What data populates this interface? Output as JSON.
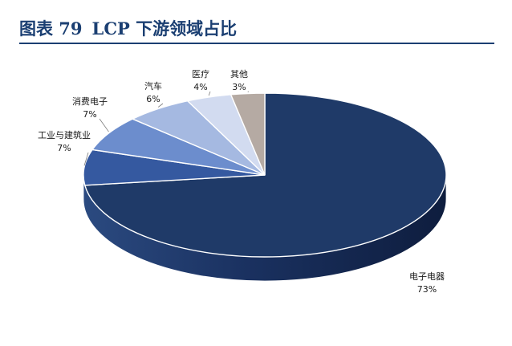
{
  "figure": {
    "number": "图表 79",
    "title": "LCP 下游领域占比"
  },
  "chart_data": {
    "type": "pie",
    "style": "3d",
    "title": "",
    "slices": [
      {
        "label": "电子电器",
        "value": 73,
        "value_label": "73%",
        "color": "#1f3a68"
      },
      {
        "label": "工业与建筑业",
        "value": 7,
        "value_label": "7%",
        "color": "#3559a0"
      },
      {
        "label": "消费电子",
        "value": 7,
        "value_label": "7%",
        "color": "#6c8dcd"
      },
      {
        "label": "汽车",
        "value": 6,
        "value_label": "6%",
        "color": "#a5b9e1"
      },
      {
        "label": "医疗",
        "value": 4,
        "value_label": "4%",
        "color": "#d2dbf0"
      },
      {
        "label": "其他",
        "value": 3,
        "value_label": "3%",
        "color": "#b5aaa3"
      }
    ]
  }
}
